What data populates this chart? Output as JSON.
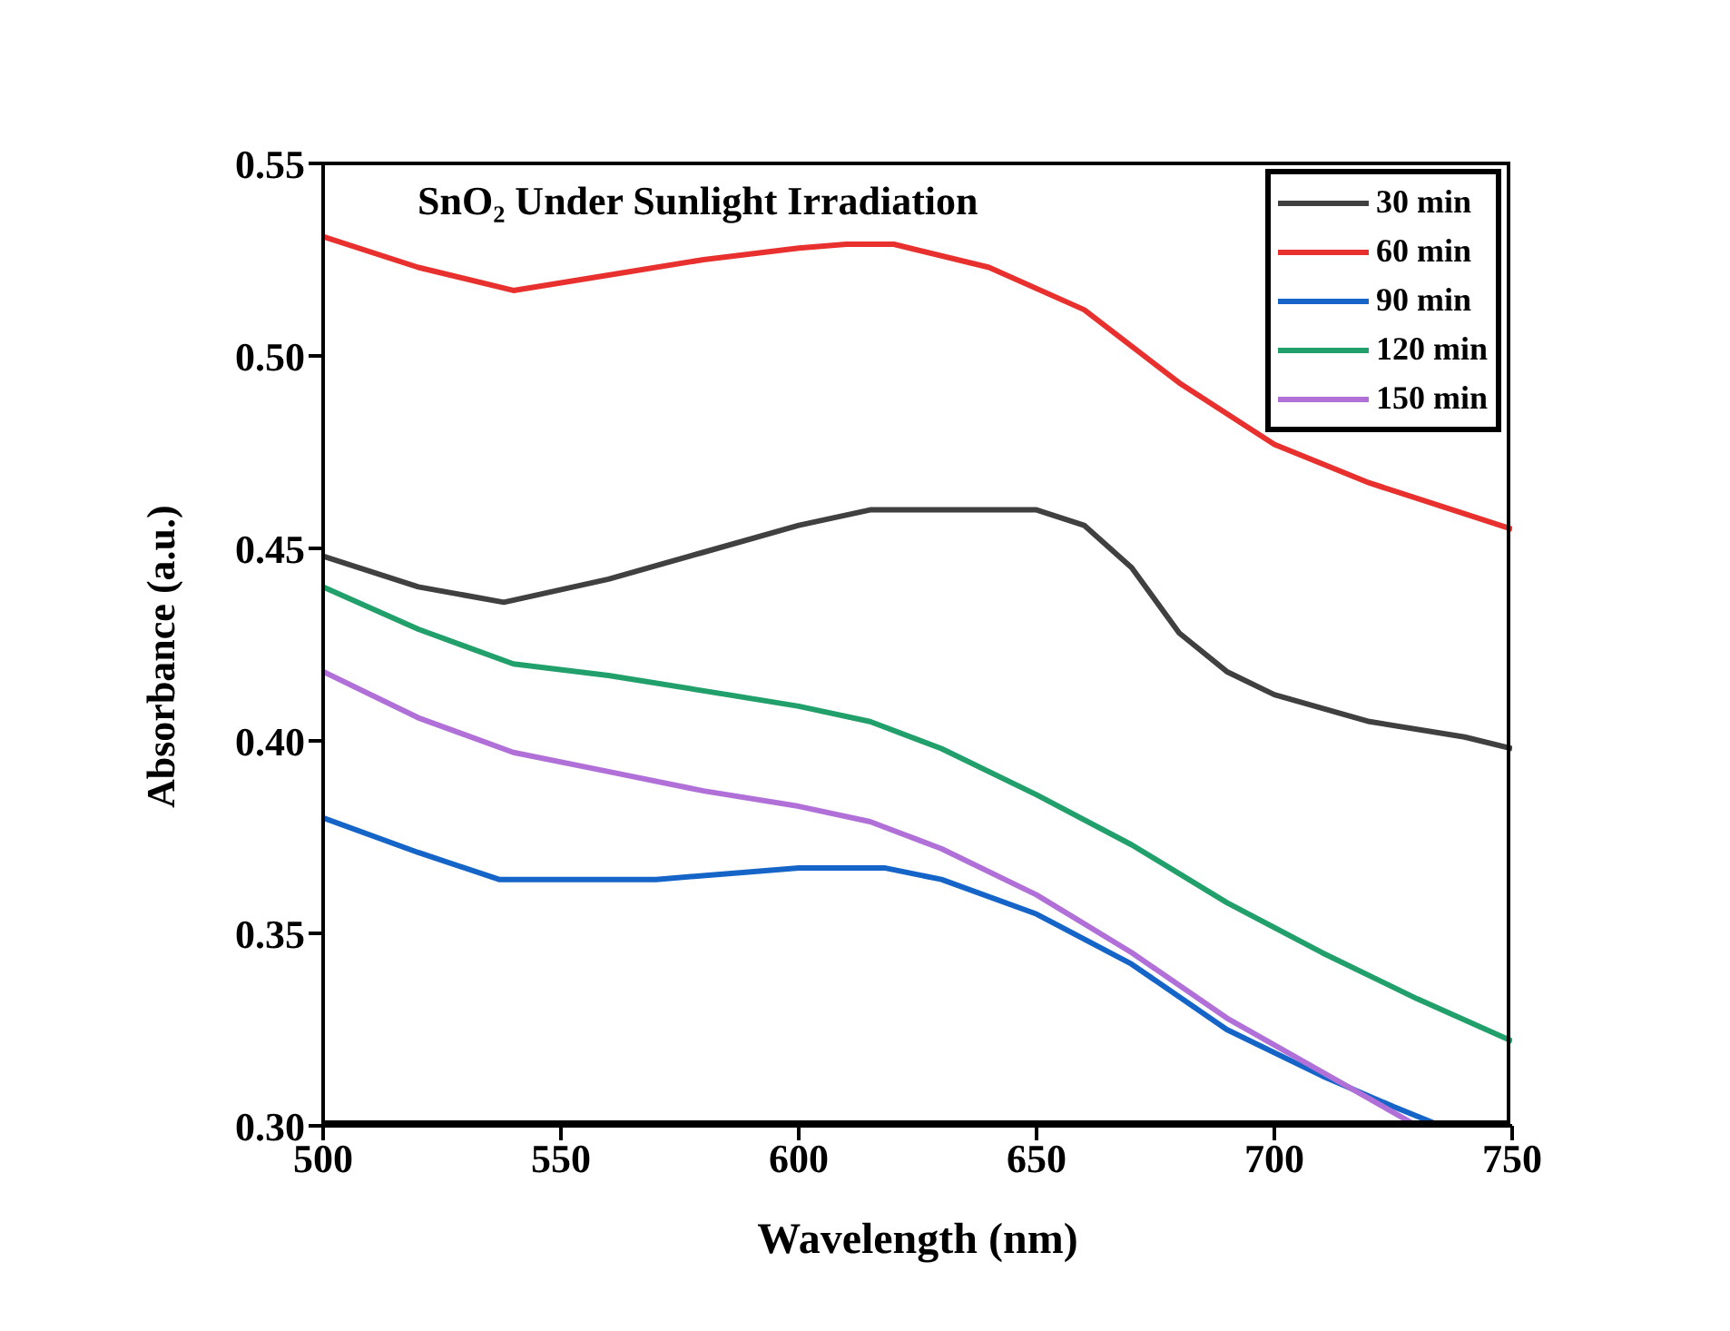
{
  "chart_data": {
    "type": "line",
    "title": "SnO₂ Under Sunlight Irradiation",
    "xlabel": "Wavelength (nm)",
    "ylabel": "Absorbance (a.u.)",
    "xlim": [
      500,
      750
    ],
    "xticks": [
      500,
      550,
      600,
      650,
      700,
      750
    ],
    "ylim": [
      0.3,
      0.55
    ],
    "yticks": [
      {
        "value": 0.3,
        "label": "0.30"
      },
      0.35,
      {
        "value": 0.4,
        "label": "0.40"
      },
      0.45,
      {
        "value": 0.5,
        "label": "0.50"
      },
      0.55
    ],
    "grid": false,
    "legend": "top right",
    "marker": "none",
    "line_style": "solid",
    "series": [
      {
        "name": "30 min",
        "color": "#404040",
        "x": [
          500,
          520,
          538,
          560,
          580,
          600,
          615,
          650,
          660,
          670,
          680,
          690,
          700,
          720,
          740,
          750
        ],
        "values": [
          0.448,
          0.44,
          0.436,
          0.442,
          0.449,
          0.456,
          0.46,
          0.46,
          0.456,
          0.445,
          0.428,
          0.418,
          0.412,
          0.405,
          0.401,
          0.398
        ]
      },
      {
        "name": "60 min",
        "color": "#e8312f",
        "x": [
          500,
          520,
          540,
          560,
          580,
          600,
          610,
          620,
          640,
          660,
          680,
          700,
          720,
          740,
          750
        ],
        "values": [
          0.531,
          0.523,
          0.517,
          0.521,
          0.525,
          0.528,
          0.529,
          0.529,
          0.523,
          0.512,
          0.493,
          0.477,
          0.467,
          0.459,
          0.455
        ]
      },
      {
        "name": "90 min",
        "color": "#1565c8",
        "x": [
          500,
          520,
          537,
          570,
          590,
          600,
          618,
          630,
          650,
          670,
          690,
          710,
          725,
          735
        ],
        "values": [
          0.38,
          0.371,
          0.364,
          0.364,
          0.366,
          0.367,
          0.367,
          0.364,
          0.355,
          0.342,
          0.325,
          0.313,
          0.305,
          0.3
        ]
      },
      {
        "name": "120 min",
        "color": "#22a06b",
        "x": [
          500,
          520,
          540,
          560,
          580,
          600,
          615,
          630,
          650,
          670,
          690,
          710,
          730,
          750
        ],
        "values": [
          0.44,
          0.429,
          0.42,
          0.417,
          0.413,
          0.409,
          0.405,
          0.398,
          0.386,
          0.373,
          0.358,
          0.345,
          0.333,
          0.322
        ]
      },
      {
        "name": "150 min",
        "color": "#b070d8",
        "x": [
          500,
          520,
          540,
          560,
          580,
          600,
          615,
          630,
          650,
          670,
          690,
          710,
          730
        ],
        "values": [
          0.418,
          0.406,
          0.397,
          0.392,
          0.387,
          0.383,
          0.379,
          0.372,
          0.36,
          0.345,
          0.328,
          0.314,
          0.3
        ]
      }
    ]
  }
}
